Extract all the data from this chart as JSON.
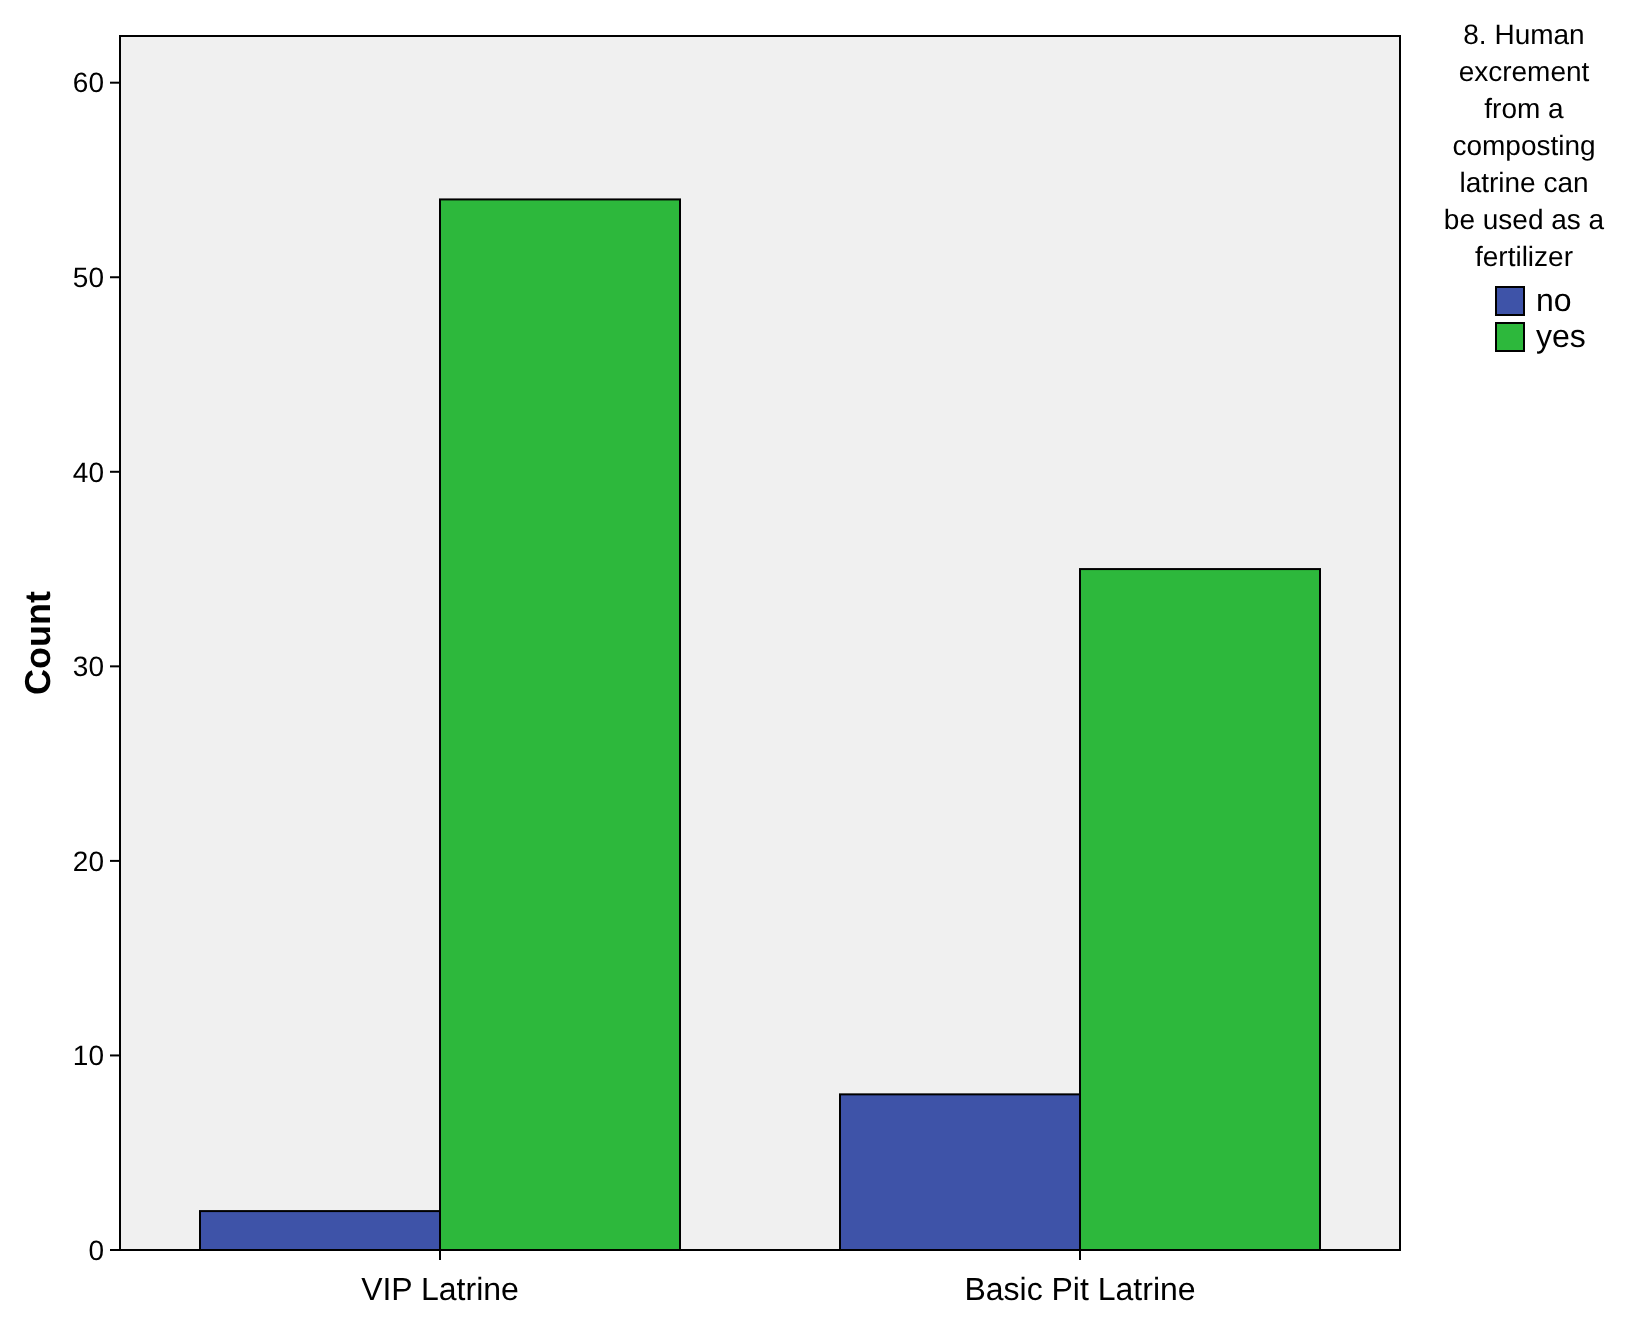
{
  "chart_data": {
    "type": "bar",
    "ylabel": "Count",
    "legend_title": "8. Human excrement from a composting latrine can be used as a fertilizer",
    "categories": [
      "VIP Latrine",
      "Basic Pit Latrine"
    ],
    "series": [
      {
        "name": "no",
        "color": "#3e53a8",
        "values": [
          2,
          8
        ]
      },
      {
        "name": "yes",
        "color": "#2db83c",
        "values": [
          54,
          35
        ]
      }
    ],
    "ylim": [
      0,
      62.4
    ],
    "yticks": [
      0,
      10,
      20,
      30,
      40,
      50,
      60
    ],
    "grid": false,
    "legend": "right"
  }
}
